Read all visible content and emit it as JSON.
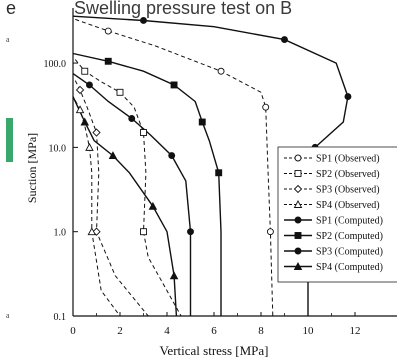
{
  "header": {
    "left_fragment": "e",
    "title_fragment": "Swelling pressure test on B"
  },
  "margin_marks": {
    "top": "a",
    "bottom": "a"
  },
  "colors": {
    "accent_bar": "#3aa76d",
    "ink": "#111111"
  },
  "chart_data": {
    "type": "line",
    "xlabel": "Vertical stress [MPa]",
    "ylabel": "Suction [MPa]",
    "xlim": [
      0,
      13.5
    ],
    "ylim": [
      0.1,
      450
    ],
    "yscale": "log",
    "x_ticks": [
      "0",
      "2",
      "4",
      "6",
      "8",
      "10",
      "12"
    ],
    "y_ticks": [
      "0.1",
      "1.0",
      "10.0",
      "100.0"
    ],
    "extra_x_ticks": [
      "1",
      "3",
      "5",
      "7",
      "9",
      "11"
    ],
    "grid": false,
    "legend_position": "right",
    "series": [
      {
        "name": "SP1 (Observed)",
        "style": "dashed",
        "marker": "circle-open",
        "points": [
          [
            0.1,
            330
          ],
          [
            1.5,
            240
          ],
          [
            3.5,
            160
          ],
          [
            6.3,
            80
          ],
          [
            8,
            45
          ],
          [
            8.2,
            30
          ],
          [
            8.3,
            5
          ],
          [
            8.4,
            1.0
          ],
          [
            8.5,
            0.1
          ]
        ]
      },
      {
        "name": "SP2 (Observed)",
        "style": "dashed",
        "marker": "square-open",
        "points": [
          [
            0.1,
            110
          ],
          [
            0.5,
            80
          ],
          [
            1.2,
            60
          ],
          [
            2.0,
            45
          ],
          [
            2.6,
            30
          ],
          [
            3.0,
            15
          ],
          [
            3.1,
            5
          ],
          [
            3.0,
            1.0
          ],
          [
            3.2,
            0.5
          ],
          [
            4.6,
            0.1
          ]
        ]
      },
      {
        "name": "SP3 (Observed)",
        "style": "dashed",
        "marker": "diamond-open",
        "points": [
          [
            0.1,
            62
          ],
          [
            0.3,
            48
          ],
          [
            0.6,
            30
          ],
          [
            1.0,
            15
          ],
          [
            1.1,
            5
          ],
          [
            1.0,
            1.0
          ],
          [
            1.8,
            0.3
          ],
          [
            3.2,
            0.1
          ]
        ]
      },
      {
        "name": "SP4 (Observed)",
        "style": "dashed",
        "marker": "triangle-open",
        "points": [
          [
            0.1,
            36
          ],
          [
            0.3,
            28
          ],
          [
            0.5,
            18
          ],
          [
            0.7,
            10
          ],
          [
            0.8,
            5
          ],
          [
            0.8,
            1.0
          ],
          [
            1.2,
            0.2
          ],
          [
            2.0,
            0.1
          ]
        ]
      },
      {
        "name": "SP1 (Computed)",
        "style": "solid",
        "marker": "circle-filled",
        "points": [
          [
            0,
            360
          ],
          [
            3,
            320
          ],
          [
            6,
            270
          ],
          [
            9,
            190
          ],
          [
            11.2,
            100
          ],
          [
            11.7,
            40
          ],
          [
            11.5,
            20
          ],
          [
            10.3,
            10
          ],
          [
            10.0,
            5
          ],
          [
            10.0,
            1.0
          ],
          [
            10.0,
            0.1
          ]
        ]
      },
      {
        "name": "SP2 (Computed)",
        "style": "solid",
        "marker": "square-filled",
        "points": [
          [
            0,
            130
          ],
          [
            1.5,
            105
          ],
          [
            3.0,
            80
          ],
          [
            4.3,
            55
          ],
          [
            5.2,
            35
          ],
          [
            5.5,
            20
          ],
          [
            5.8,
            12
          ],
          [
            6.2,
            5
          ],
          [
            6.3,
            1.0
          ],
          [
            6.3,
            0.1
          ]
        ]
      },
      {
        "name": "SP3 (Computed)",
        "style": "solid",
        "marker": "circle-filled",
        "points": [
          [
            0,
            75
          ],
          [
            0.7,
            55
          ],
          [
            1.5,
            35
          ],
          [
            2.5,
            22
          ],
          [
            3.3,
            14
          ],
          [
            4.2,
            8
          ],
          [
            4.8,
            4
          ],
          [
            5.0,
            1.0
          ],
          [
            5.0,
            0.1
          ]
        ]
      },
      {
        "name": "SP4 (Computed)",
        "style": "solid",
        "marker": "triangle-filled",
        "points": [
          [
            0,
            40
          ],
          [
            0.5,
            20
          ],
          [
            0.9,
            12
          ],
          [
            1.7,
            8
          ],
          [
            2.4,
            5
          ],
          [
            3.4,
            2
          ],
          [
            4.0,
            1.0
          ],
          [
            4.3,
            0.3
          ],
          [
            4.4,
            0.1
          ]
        ]
      }
    ]
  }
}
